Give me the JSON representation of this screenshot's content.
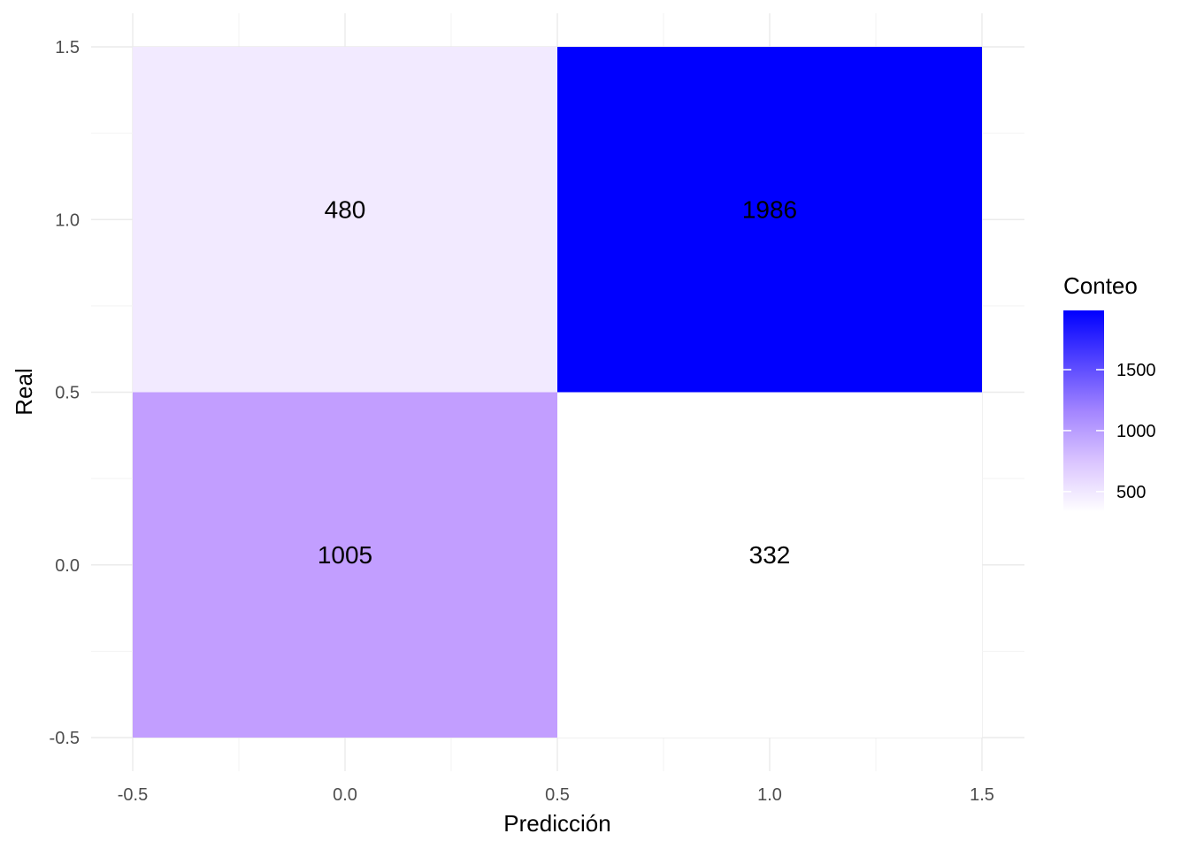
{
  "chart_data": {
    "type": "heatmap",
    "xlabel": "Predicción",
    "ylabel": "Real",
    "xlim": [
      -0.5,
      1.5
    ],
    "ylim": [
      -0.5,
      1.5
    ],
    "x_ticks": [
      "-0.5",
      "0.0",
      "0.5",
      "1.0",
      "1.5"
    ],
    "y_ticks": [
      "-0.5",
      "0.0",
      "0.5",
      "1.0",
      "1.5"
    ],
    "cells": [
      {
        "x": 0,
        "y": 1,
        "value": 480,
        "label": "480"
      },
      {
        "x": 1,
        "y": 1,
        "value": 1986,
        "label": "1986"
      },
      {
        "x": 0,
        "y": 0,
        "value": 1005,
        "label": "1005"
      },
      {
        "x": 1,
        "y": 0,
        "value": 332,
        "label": "332"
      }
    ],
    "grid": true,
    "legend": {
      "title": "Conteo",
      "position": "right",
      "low_color": "#ffffff",
      "high_color": "#0000ff",
      "range": [
        332,
        1986
      ],
      "ticks": [
        "500",
        "1000",
        "1500"
      ]
    }
  }
}
